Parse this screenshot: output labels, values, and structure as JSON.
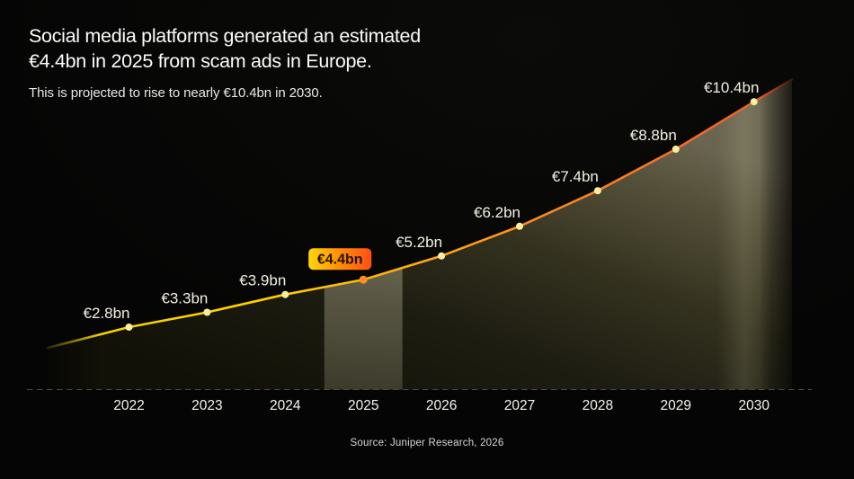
{
  "header": {
    "title_line1": "Social media platforms generated an estimated",
    "title_line2": "€4.4bn in 2025 from scam ads in Europe.",
    "subtitle": "This is projected to rise to nearly €10.4bn in 2030."
  },
  "footer": {
    "source": "Source: Juniper Research, 2026"
  },
  "chart_data": {
    "type": "area",
    "title": "Social media platforms generated an estimated €4.4bn in 2025 from scam ads in Europe.",
    "x": [
      2022,
      2023,
      2024,
      2025,
      2026,
      2027,
      2028,
      2029,
      2030
    ],
    "values": [
      2.8,
      3.3,
      3.9,
      4.4,
      5.2,
      6.2,
      7.4,
      8.8,
      10.4
    ],
    "labels": [
      "€2.8bn",
      "€3.3bn",
      "€3.9bn",
      "€4.4bn",
      "€5.2bn",
      "€6.2bn",
      "€7.4bn",
      "€8.8bn",
      "€10.4bn"
    ],
    "unit": "€bn",
    "xlabel": "",
    "ylabel": "",
    "x_ticks": [
      "2022",
      "2023",
      "2024",
      "2025",
      "2026",
      "2027",
      "2028",
      "2029",
      "2030"
    ],
    "highlighted_x": 2025,
    "highlight_badge": "€4.4bn",
    "grid": false,
    "legend": false
  },
  "colors": {
    "background": "#050505",
    "title_text": "#fbfbf8",
    "subtitle_text": "#e9e8e5",
    "axis_label": "#f4f3ee",
    "value_label": "#f3f0e1",
    "source_text": "#d8d7d4",
    "axis_dash": "#4c4b43",
    "line_gradient": [
      "#f4d500",
      "#ffd000",
      "#ffb10c",
      "#ff921e",
      "#f87828",
      "#e7582a"
    ],
    "dot": "#f8f09b",
    "highlight_dot": "#ff8d1f",
    "badge_gradient": [
      "#ffd60a",
      "#ff9405",
      "#ff4f14"
    ],
    "badge_text": "#221300",
    "area_gradient": [
      "#121107",
      "#1e1d12",
      "#33311e",
      "#544f39",
      "#6a6550"
    ],
    "band_overlay": "#d8d3ae",
    "streak_overlay": "#e9e3b9"
  }
}
